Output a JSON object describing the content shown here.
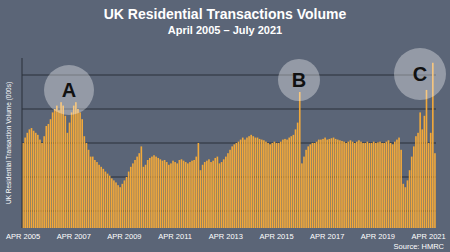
{
  "chart_data": {
    "type": "bar",
    "title": "UK Residential Transactions Volume",
    "subtitle": "April 2005 – July 2021",
    "y_label": "UK Residential Transaction Volume (000s)",
    "source": "Source: HMRC",
    "annotations": [
      {
        "text": "A"
      },
      {
        "text": "B"
      },
      {
        "text": "C"
      }
    ],
    "categories": [
      "APR 2005",
      null,
      null,
      null,
      null,
      null,
      null,
      null,
      null,
      null,
      null,
      null,
      null,
      null,
      null,
      null,
      null,
      null,
      null,
      null,
      null,
      null,
      null,
      null,
      "APR 2007",
      null,
      null,
      null,
      null,
      null,
      null,
      null,
      null,
      null,
      null,
      null,
      null,
      null,
      null,
      null,
      null,
      null,
      null,
      null,
      null,
      null,
      null,
      null,
      "APR 2009",
      null,
      null,
      null,
      null,
      null,
      null,
      null,
      null,
      null,
      null,
      null,
      null,
      null,
      null,
      null,
      null,
      null,
      null,
      null,
      null,
      null,
      null,
      null,
      "APR 2011",
      null,
      null,
      null,
      null,
      null,
      null,
      null,
      null,
      null,
      null,
      null,
      null,
      null,
      null,
      null,
      null,
      null,
      null,
      null,
      null,
      null,
      null,
      null,
      "APR 2013",
      null,
      null,
      null,
      null,
      null,
      null,
      null,
      null,
      null,
      null,
      null,
      null,
      null,
      null,
      null,
      null,
      null,
      null,
      null,
      null,
      null,
      null,
      null,
      "APR 2015",
      null,
      null,
      null,
      null,
      null,
      null,
      null,
      null,
      null,
      null,
      null,
      null,
      null,
      null,
      null,
      null,
      null,
      null,
      null,
      null,
      null,
      null,
      null,
      "APR 2017",
      null,
      null,
      null,
      null,
      null,
      null,
      null,
      null,
      null,
      null,
      null,
      null,
      null,
      null,
      null,
      null,
      null,
      null,
      null,
      null,
      null,
      null,
      null,
      "APR 2019",
      null,
      null,
      null,
      null,
      null,
      null,
      null,
      null,
      null,
      null,
      null,
      null,
      null,
      null,
      null,
      null,
      null,
      null,
      null,
      null,
      null,
      null,
      null,
      "APR 2021",
      null,
      null,
      null
    ],
    "values": [
      150,
      158,
      165,
      170,
      172,
      168,
      165,
      162,
      155,
      150,
      160,
      175,
      178,
      185,
      195,
      200,
      205,
      198,
      210,
      205,
      190,
      165,
      180,
      195,
      205,
      210,
      200,
      195,
      185,
      160,
      150,
      140,
      130,
      130,
      125,
      122,
      118,
      115,
      112,
      108,
      105,
      102,
      98,
      95,
      92,
      88,
      85,
      90,
      95,
      100,
      108,
      115,
      120,
      125,
      130,
      135,
      145,
      115,
      118,
      125,
      128,
      130,
      132,
      130,
      128,
      126,
      124,
      125,
      122,
      118,
      120,
      124,
      122,
      120,
      125,
      126,
      124,
      122,
      120,
      122,
      124,
      125,
      130,
      150,
      110,
      118,
      122,
      124,
      126,
      122,
      124,
      128,
      130,
      120,
      122,
      126,
      130,
      135,
      140,
      145,
      148,
      150,
      152,
      155,
      158,
      155,
      158,
      160,
      162,
      160,
      158,
      158,
      156,
      155,
      154,
      152,
      150,
      148,
      150,
      152,
      150,
      150,
      152,
      155,
      156,
      155,
      158,
      160,
      162,
      170,
      180,
      225,
      120,
      130,
      140,
      145,
      148,
      150,
      150,
      152,
      155,
      155,
      156,
      158,
      155,
      156,
      157,
      158,
      156,
      155,
      154,
      153,
      152,
      150,
      152,
      154,
      152,
      150,
      152,
      154,
      152,
      150,
      150,
      152,
      150,
      150,
      152,
      150,
      151,
      152,
      150,
      150,
      152,
      154,
      150,
      148,
      152,
      155,
      158,
      140,
      90,
      85,
      95,
      110,
      130,
      145,
      160,
      165,
      195,
      170,
      190,
      228,
      150,
      165,
      268,
      135
    ],
    "color": "#f2a93b",
    "ylim": [
      25,
      275
    ],
    "yticks": [
      50,
      100,
      150,
      200,
      250
    ],
    "grid": true,
    "tick_labels": "x"
  }
}
